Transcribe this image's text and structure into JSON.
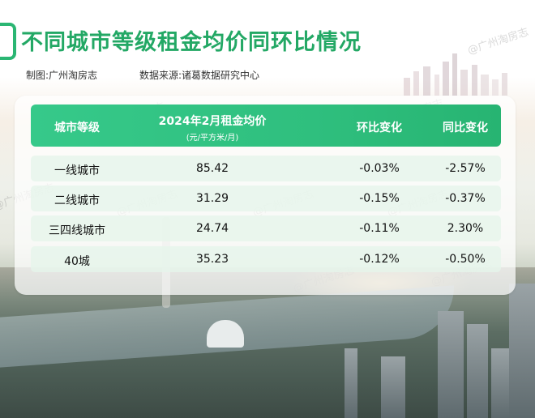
{
  "header": {
    "title": "不同城市等级租金均价同环比情况",
    "credit": "制图:广州淘房志",
    "source": "数据来源:诸葛数据研究中心"
  },
  "watermark": "@广州淘房志",
  "table": {
    "columns": {
      "tier": "城市等级",
      "rent": "2024年2月租金均价",
      "rent_unit": "(元/平方米/月)",
      "mom": "环比变化",
      "yoy": "同比变化"
    },
    "rows": [
      {
        "tier": "一线城市",
        "rent": "85.42",
        "mom": "-0.03%",
        "yoy": "-2.57%"
      },
      {
        "tier": "二线城市",
        "rent": "31.29",
        "mom": "-0.15%",
        "yoy": "-0.37%"
      },
      {
        "tier": "三四线城市",
        "rent": "24.74",
        "mom": "-0.11%",
        "yoy": "2.30%"
      },
      {
        "tier": "40城",
        "rent": "35.23",
        "mom": "-0.12%",
        "yoy": "-0.50%"
      }
    ]
  },
  "colors": {
    "accent": "#23a865",
    "header_bar": "#2fbf7e",
    "row_bg": "#e5f5eb"
  }
}
